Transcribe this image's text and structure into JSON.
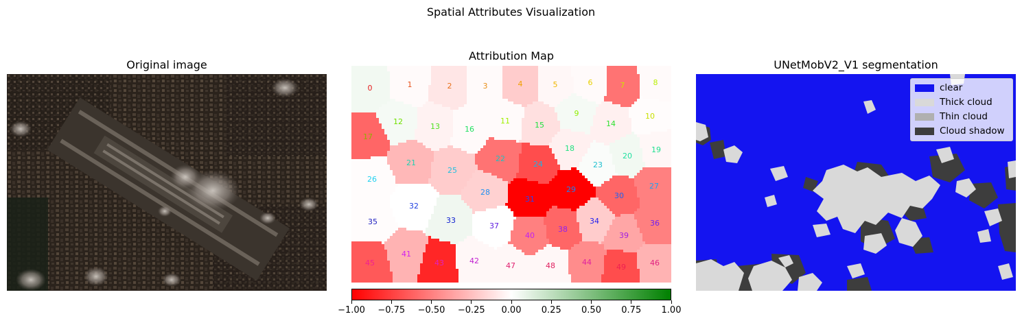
{
  "suptitle": "Spatial Attributes Visualization",
  "panels": {
    "original": {
      "title": "Original image"
    },
    "attribution": {
      "title": "Attribution Map"
    },
    "segmentation": {
      "title": "UNetMobV2_V1 segmentation"
    }
  },
  "chart_data": {
    "type": "heatmap",
    "title": "Attribution Map",
    "segments": [
      {
        "id": 0,
        "value": 0.05
      },
      {
        "id": 1,
        "value": -0.02
      },
      {
        "id": 2,
        "value": -0.1
      },
      {
        "id": 3,
        "value": -0.02
      },
      {
        "id": 4,
        "value": -0.2
      },
      {
        "id": 5,
        "value": -0.03
      },
      {
        "id": 6,
        "value": -0.02
      },
      {
        "id": 7,
        "value": -0.55
      },
      {
        "id": 8,
        "value": -0.02
      },
      {
        "id": 9,
        "value": 0.04
      },
      {
        "id": 10,
        "value": -0.01
      },
      {
        "id": 11,
        "value": -0.02
      },
      {
        "id": 12,
        "value": 0.04
      },
      {
        "id": 13,
        "value": -0.05
      },
      {
        "id": 14,
        "value": -0.06
      },
      {
        "id": 15,
        "value": -0.12
      },
      {
        "id": 16,
        "value": -0.02
      },
      {
        "id": 17,
        "value": -0.6
      },
      {
        "id": 18,
        "value": -0.06
      },
      {
        "id": 19,
        "value": -0.03
      },
      {
        "id": 20,
        "value": 0.05
      },
      {
        "id": 21,
        "value": -0.28
      },
      {
        "id": 22,
        "value": -0.55
      },
      {
        "id": 23,
        "value": 0.02
      },
      {
        "id": 24,
        "value": -0.7
      },
      {
        "id": 25,
        "value": -0.2
      },
      {
        "id": 26,
        "value": -0.01
      },
      {
        "id": 27,
        "value": -0.5
      },
      {
        "id": 28,
        "value": -0.18
      },
      {
        "id": 29,
        "value": -1.0
      },
      {
        "id": 30,
        "value": -0.6
      },
      {
        "id": 31,
        "value": -1.0
      },
      {
        "id": 32,
        "value": 0.0
      },
      {
        "id": 33,
        "value": 0.06
      },
      {
        "id": 34,
        "value": -0.2
      },
      {
        "id": 35,
        "value": -0.01
      },
      {
        "id": 36,
        "value": -0.5
      },
      {
        "id": 37,
        "value": 0.0
      },
      {
        "id": 38,
        "value": -0.6
      },
      {
        "id": 39,
        "value": -0.35
      },
      {
        "id": 40,
        "value": -0.5
      },
      {
        "id": 41,
        "value": -0.3
      },
      {
        "id": 42,
        "value": -0.03
      },
      {
        "id": 43,
        "value": -0.85
      },
      {
        "id": 44,
        "value": -0.45
      },
      {
        "id": 45,
        "value": -0.65
      },
      {
        "id": 46,
        "value": -0.3
      },
      {
        "id": 47,
        "value": -0.03
      },
      {
        "id": 48,
        "value": -0.03
      },
      {
        "id": 49,
        "value": -0.7
      }
    ],
    "colorbar": {
      "ticks": [
        "−1.00",
        "−0.75",
        "−0.50",
        "−0.25",
        "0.00",
        "0.25",
        "0.50",
        "0.75",
        "1.00"
      ],
      "range": [
        -1.0,
        1.0
      ],
      "colors": [
        "#ff0000",
        "#ffffff",
        "#008000"
      ]
    }
  },
  "legend": {
    "items": [
      {
        "label": "clear",
        "color": "#1414f0"
      },
      {
        "label": "Thick cloud",
        "color": "#d9d9d9"
      },
      {
        "label": "Thin cloud",
        "color": "#b0b0b0"
      },
      {
        "label": "Cloud shadow",
        "color": "#3d3d3d"
      }
    ]
  }
}
